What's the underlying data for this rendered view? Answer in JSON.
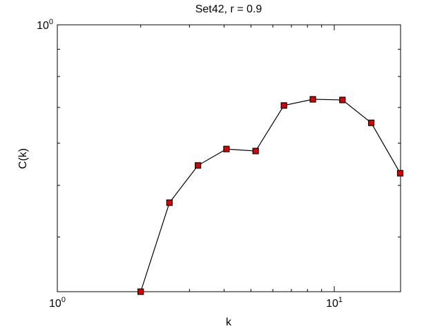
{
  "chart_data": {
    "type": "line",
    "title": "Set42, r = 0.9",
    "x_label": "k",
    "y_label": "C(k)",
    "log_x": true,
    "log_y": true,
    "xlim": [
      1,
      17.35
    ],
    "ylim": [
      0.316,
      1
    ],
    "xticks": [
      {
        "value": 1,
        "label": "10^0"
      },
      {
        "value": 10,
        "label": "10^1"
      }
    ],
    "yticks": [
      {
        "value": 1,
        "label": "10^0"
      }
    ],
    "series": [
      {
        "name": "C(k)",
        "color": "#000000",
        "marker_color": "#dd0000",
        "x": [
          2.0,
          2.54,
          3.22,
          4.08,
          5.2,
          6.58,
          8.37,
          10.7,
          13.6,
          17.3
        ],
        "values": [
          0.316,
          0.464,
          0.545,
          0.585,
          0.58,
          0.706,
          0.725,
          0.723,
          0.655,
          0.527
        ]
      }
    ]
  }
}
